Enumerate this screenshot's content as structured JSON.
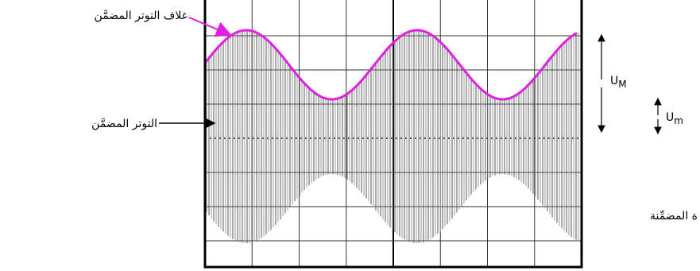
{
  "labels": {
    "envelope": "غلاف التوتر المضمَّن",
    "modulated": "التوتر المضمَّن",
    "u_max": {
      "base": "U",
      "sub": "M"
    },
    "u_min": {
      "base": "U",
      "sub": "m"
    },
    "modulating": "ة المضمِّنة"
  }
}
